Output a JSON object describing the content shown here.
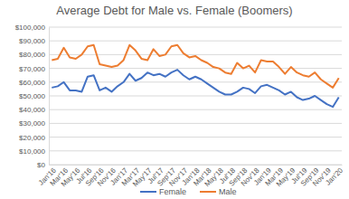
{
  "chart_data": {
    "type": "line",
    "title": "Average Debt for Male vs. Female (Boomers)",
    "categories": [
      "Jan'16",
      null,
      "Mar'16",
      null,
      "May'16",
      null,
      "Jul'16",
      null,
      "Sep'16",
      null,
      "Nov'16",
      null,
      "Jan'17",
      null,
      "Mar'17",
      null,
      "May'17",
      null,
      "Jul'17",
      null,
      "Sep'17",
      null,
      "Nov'17",
      null,
      "Jan'18",
      null,
      "Mar'18",
      null,
      "May'18",
      null,
      "Jul'18",
      null,
      "Sep'18",
      null,
      "Nov'18",
      null,
      "Jan'19",
      null,
      "Mar'19",
      null,
      "May'19",
      null,
      "Jul'19",
      null,
      "Sep'19",
      null,
      "Nov'19",
      null,
      "Jan'20"
    ],
    "series": [
      {
        "name": "Female",
        "color": "#4472c4",
        "values": [
          56000,
          57000,
          60000,
          54000,
          54000,
          53000,
          64000,
          65000,
          54000,
          56000,
          53000,
          57000,
          60000,
          66000,
          61000,
          63000,
          67000,
          65000,
          66000,
          64000,
          67000,
          69000,
          65000,
          62000,
          64000,
          62000,
          59000,
          56000,
          53000,
          51000,
          51000,
          53000,
          56000,
          55000,
          52000,
          57000,
          58000,
          56000,
          54000,
          51000,
          53000,
          49000,
          47000,
          48000,
          50000,
          47000,
          44000,
          42000,
          49000
        ]
      },
      {
        "name": "Male",
        "color": "#ed7d31",
        "values": [
          76000,
          77000,
          85000,
          78000,
          77000,
          80000,
          86000,
          87000,
          73000,
          72000,
          71000,
          72000,
          76000,
          87000,
          83000,
          77000,
          76000,
          84000,
          79000,
          80000,
          86000,
          87000,
          81000,
          78000,
          79000,
          76000,
          74000,
          71000,
          70000,
          67000,
          66000,
          74000,
          70000,
          72000,
          67000,
          76000,
          75000,
          75000,
          71000,
          66000,
          71000,
          67000,
          65000,
          64000,
          67000,
          62000,
          59000,
          56000,
          63000
        ]
      }
    ],
    "ylim": [
      0,
      100000
    ],
    "yticks": [
      {
        "value": 0,
        "label": "$0"
      },
      {
        "value": 10000,
        "label": "$10,000"
      },
      {
        "value": 20000,
        "label": "$20,000"
      },
      {
        "value": 30000,
        "label": "$30,000"
      },
      {
        "value": 40000,
        "label": "$40,000"
      },
      {
        "value": 50000,
        "label": "$50,000"
      },
      {
        "value": 60000,
        "label": "$60,000"
      },
      {
        "value": 70000,
        "label": "$70,000"
      },
      {
        "value": 80000,
        "label": "$80,000"
      },
      {
        "value": 90000,
        "label": "$90,000"
      },
      {
        "value": 100000,
        "label": "$100,000"
      }
    ],
    "grid": true,
    "legend": "bottom"
  }
}
